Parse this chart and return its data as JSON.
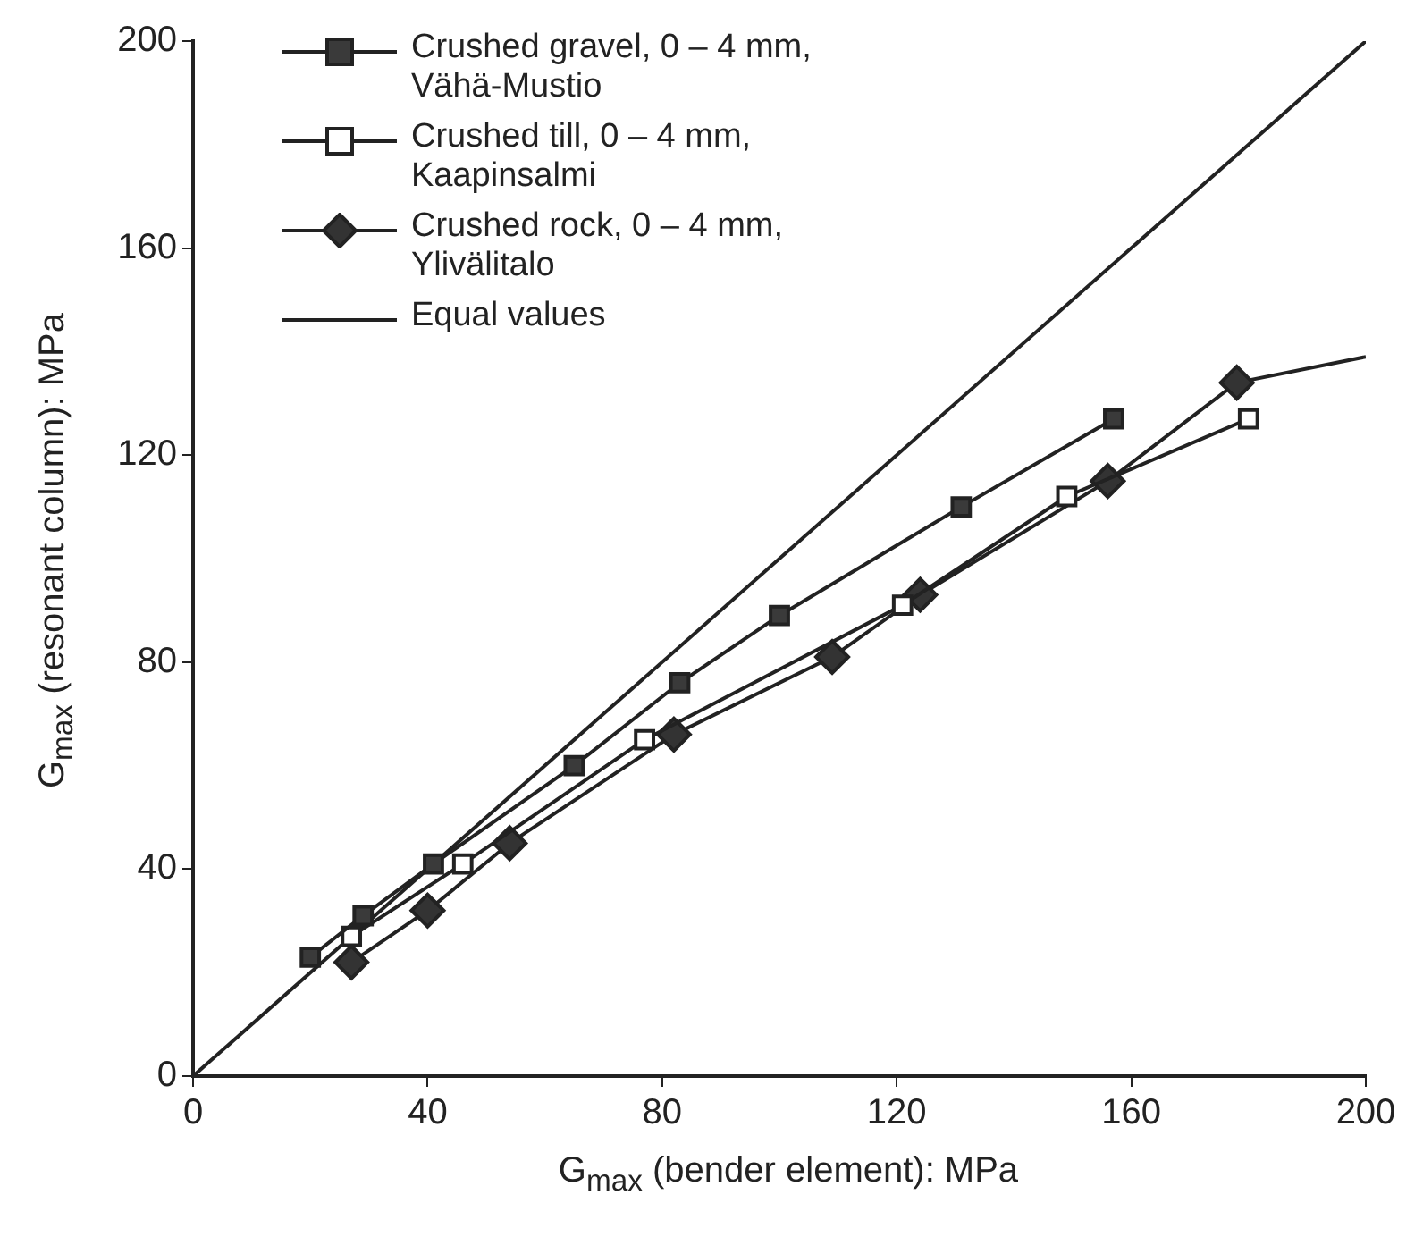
{
  "chart_data": {
    "type": "line",
    "xlabel": "G$_{max}$ (bender element): MPa",
    "ylabel": "G$_{max}$ (resonant column): MPa",
    "xlim": [
      0,
      200
    ],
    "ylim": [
      0,
      200
    ],
    "xticks": [
      0,
      40,
      80,
      120,
      160,
      200
    ],
    "yticks": [
      0,
      40,
      80,
      120,
      160,
      200
    ],
    "legend": "top left",
    "series": [
      {
        "name": "Crushed gravel, 0 – 4 mm, Vähä-Mustio",
        "color": "#3a3a3a",
        "marker": "square",
        "x": [
          20,
          29,
          41,
          65,
          83,
          100,
          131,
          157
        ],
        "values": [
          23,
          31,
          41,
          60,
          76,
          89,
          110,
          127
        ]
      },
      {
        "name": "Crushed till, 0 – 4 mm, Kaapinsalmi",
        "color": "#ffffff",
        "marker": "square",
        "x": [
          27,
          46,
          77,
          121,
          149,
          180
        ],
        "values": [
          27,
          41,
          65,
          91,
          112,
          127
        ]
      },
      {
        "name": "Crushed rock, 0 – 4 mm, Ylivälitalo",
        "color": "#333333",
        "marker": "diamond",
        "x": [
          27,
          40,
          54,
          82,
          109,
          124,
          156,
          178
        ],
        "values": [
          22,
          32,
          45,
          66,
          81,
          93,
          115,
          134
        ]
      },
      {
        "name": "Equal values",
        "color": "#222222",
        "marker": "none",
        "x": [
          0,
          200
        ],
        "values": [
          0,
          200
        ]
      },
      {
        "type": "line",
        "color": "#222222",
        "marker": "none",
        "x": [
          178,
          200
        ],
        "values": [
          134,
          139
        ]
      }
    ]
  }
}
